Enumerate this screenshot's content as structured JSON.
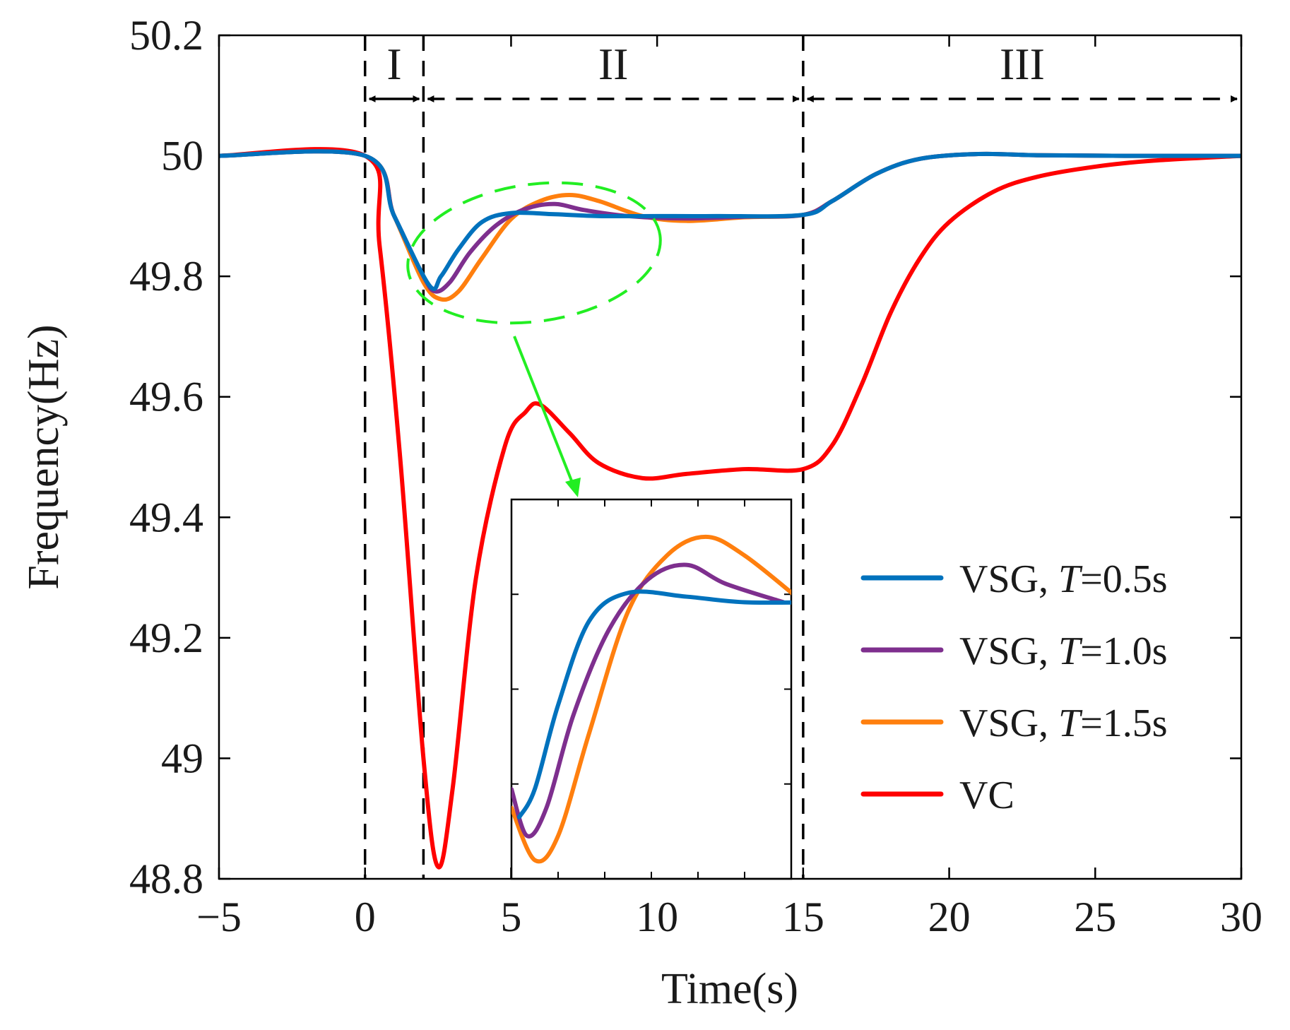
{
  "chart_data": {
    "type": "line",
    "xlabel": "Time(s)",
    "ylabel": "Frequency(Hz)",
    "xlim": [
      -5,
      30
    ],
    "ylim": [
      48.8,
      50.2
    ],
    "xticks": [
      -5,
      0,
      5,
      10,
      15,
      20,
      25,
      30
    ],
    "xtick_labels": [
      "−5",
      "0",
      "5",
      "10",
      "15",
      "20",
      "25",
      "30"
    ],
    "yticks": [
      48.8,
      49,
      49.2,
      49.4,
      49.6,
      49.8,
      50,
      50.2
    ],
    "ytick_labels": [
      "48.8",
      "49",
      "49.2",
      "49.4",
      "49.6",
      "49.8",
      "50",
      "50.2"
    ],
    "phases": [
      {
        "label": "I",
        "x_start": 0,
        "x_end": 2
      },
      {
        "label": "II",
        "x_start": 2,
        "x_end": 15
      },
      {
        "label": "III",
        "x_start": 15,
        "x_end": 30
      }
    ],
    "phase_boundaries": [
      0,
      2,
      15
    ],
    "series": [
      {
        "name": "VSG, T=0.5s",
        "legend_prefix": "VSG, ",
        "legend_italic": "T",
        "legend_suffix": "=0.5s",
        "color": "#0072BD",
        "points": [
          [
            -5,
            50.0
          ],
          [
            0,
            50.0
          ],
          [
            1,
            49.9
          ],
          [
            2.2,
            49.785
          ],
          [
            2.6,
            49.8
          ],
          [
            3.2,
            49.845
          ],
          [
            4.0,
            49.89
          ],
          [
            5.0,
            49.905
          ],
          [
            6.5,
            49.903
          ],
          [
            8.0,
            49.9
          ],
          [
            10.0,
            49.9
          ],
          [
            12.0,
            49.9
          ],
          [
            15.0,
            49.902
          ],
          [
            16.0,
            49.925
          ],
          [
            17.5,
            49.97
          ],
          [
            19.0,
            49.995
          ],
          [
            21.0,
            50.003
          ],
          [
            23.0,
            50.001
          ],
          [
            26.0,
            50.0
          ],
          [
            30.0,
            50.0
          ]
        ]
      },
      {
        "name": "VSG, T=1.0s",
        "legend_prefix": "VSG, ",
        "legend_italic": "T",
        "legend_suffix": "=1.0s",
        "color": "#7E2F8E",
        "points": [
          [
            -5,
            50.0
          ],
          [
            0,
            50.0
          ],
          [
            1,
            49.9
          ],
          [
            2.0,
            49.8
          ],
          [
            2.4,
            49.775
          ],
          [
            2.9,
            49.79
          ],
          [
            3.6,
            49.84
          ],
          [
            4.5,
            49.885
          ],
          [
            5.5,
            49.912
          ],
          [
            6.5,
            49.92
          ],
          [
            7.5,
            49.91
          ],
          [
            9.0,
            49.9
          ],
          [
            11.0,
            49.896
          ],
          [
            13.0,
            49.899
          ],
          [
            15.0,
            49.902
          ],
          [
            16.0,
            49.925
          ],
          [
            17.5,
            49.97
          ],
          [
            19.0,
            49.995
          ],
          [
            21.0,
            50.003
          ],
          [
            23.0,
            50.001
          ],
          [
            26.0,
            50.0
          ],
          [
            30.0,
            50.0
          ]
        ]
      },
      {
        "name": "VSG, T=1.5s",
        "legend_prefix": "VSG, ",
        "legend_italic": "T",
        "legend_suffix": "=1.5s",
        "color": "#FF7F0E",
        "points": [
          [
            -5,
            50.0
          ],
          [
            0,
            50.0
          ],
          [
            1,
            49.9
          ],
          [
            2.0,
            49.79
          ],
          [
            2.6,
            49.762
          ],
          [
            3.2,
            49.775
          ],
          [
            4.0,
            49.83
          ],
          [
            5.0,
            49.895
          ],
          [
            6.0,
            49.925
          ],
          [
            7.0,
            49.935
          ],
          [
            8.0,
            49.925
          ],
          [
            9.5,
            49.9
          ],
          [
            11.0,
            49.892
          ],
          [
            13.0,
            49.898
          ],
          [
            15.0,
            49.902
          ],
          [
            16.0,
            49.925
          ],
          [
            17.5,
            49.97
          ],
          [
            19.0,
            49.995
          ],
          [
            21.0,
            50.003
          ],
          [
            23.0,
            50.001
          ],
          [
            26.0,
            50.0
          ],
          [
            30.0,
            50.0
          ]
        ]
      },
      {
        "name": "VC",
        "legend_prefix": "VC",
        "legend_italic": "",
        "legend_suffix": "",
        "color": "#FF0000",
        "points": [
          [
            -5,
            50.0
          ],
          [
            0,
            50.0
          ],
          [
            0.5,
            49.85
          ],
          [
            1.2,
            49.5
          ],
          [
            2.0,
            49.0
          ],
          [
            2.5,
            48.82
          ],
          [
            3.0,
            48.95
          ],
          [
            3.8,
            49.3
          ],
          [
            4.8,
            49.52
          ],
          [
            5.5,
            49.575
          ],
          [
            6.0,
            49.587
          ],
          [
            7.0,
            49.54
          ],
          [
            8.0,
            49.49
          ],
          [
            9.5,
            49.465
          ],
          [
            11.0,
            49.472
          ],
          [
            13.0,
            49.48
          ],
          [
            15.0,
            49.48
          ],
          [
            16.0,
            49.52
          ],
          [
            17.0,
            49.62
          ],
          [
            18.0,
            49.74
          ],
          [
            19.0,
            49.83
          ],
          [
            20.0,
            49.89
          ],
          [
            21.5,
            49.94
          ],
          [
            23.0,
            49.965
          ],
          [
            25.0,
            49.982
          ],
          [
            27.0,
            49.992
          ],
          [
            30.0,
            50.0
          ]
        ]
      }
    ],
    "inset": {
      "description": "zoomed view",
      "xlim": [
        2,
        9.2
      ],
      "ylim": [
        49.752,
        49.955
      ],
      "series_refs": [
        "VSG, T=0.5s",
        "VSG, T=1.0s",
        "VSG, T=1.5s"
      ]
    },
    "legend_position": "lower-right"
  }
}
